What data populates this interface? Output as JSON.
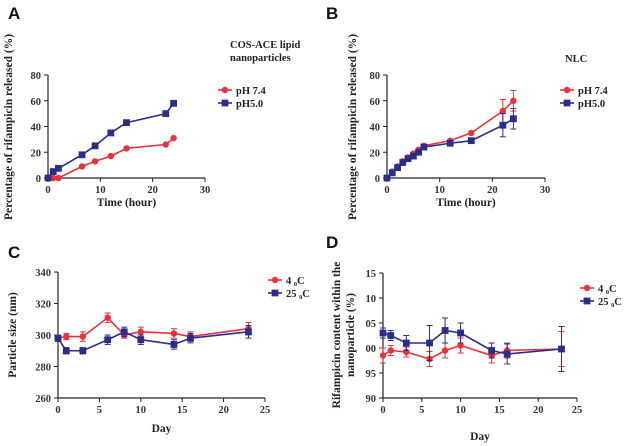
{
  "chart_data": [
    {
      "panel": "A",
      "type": "line",
      "title_lines": [
        "COS-ACE lipid",
        "nanoparticles"
      ],
      "xlabel": "Time (hour)",
      "ylabel": "Percentage of rifampicin released (%)",
      "xlim": [
        0,
        30
      ],
      "ylim": [
        0,
        80
      ],
      "xticks": [
        "0",
        "10",
        "20",
        "30"
      ],
      "yticks": [
        "0",
        "20",
        "40",
        "60",
        "80"
      ],
      "series": [
        {
          "name": "pH 7.4",
          "color": "#e8323c",
          "marker": "circle",
          "x": [
            0,
            1,
            2,
            6.5,
            9,
            12,
            15,
            22.5,
            24
          ],
          "y": [
            0,
            0,
            0,
            9,
            13,
            17,
            23,
            26,
            31
          ]
        },
        {
          "name": "pH5.0",
          "color": "#2b2e86",
          "marker": "square",
          "x": [
            0,
            1,
            2,
            6.5,
            9,
            12,
            15,
            22.5,
            24
          ],
          "y": [
            0,
            5,
            7.5,
            18,
            25,
            35,
            43,
            50,
            58
          ]
        }
      ]
    },
    {
      "panel": "B",
      "type": "line",
      "title_lines": [
        "NLC"
      ],
      "xlabel": "Time (hour)",
      "ylabel": "Percentage of rifampicin released (%)",
      "xlim": [
        0,
        30
      ],
      "ylim": [
        0,
        80
      ],
      "xticks": [
        "0",
        "10",
        "20",
        "30"
      ],
      "yticks": [
        "0",
        "20",
        "40",
        "60",
        "80"
      ],
      "series": [
        {
          "name": "pH 7.4",
          "color": "#e8323c",
          "marker": "circle",
          "x": [
            0,
            1,
            2,
            3,
            4,
            5,
            6,
            7,
            12,
            16,
            22,
            24
          ],
          "y": [
            0,
            5,
            9,
            13,
            16,
            19,
            22,
            25,
            29,
            35,
            52,
            60
          ],
          "err": [
            0,
            0,
            0,
            0,
            0,
            0,
            0,
            0,
            0,
            0,
            9,
            8
          ]
        },
        {
          "name": "pH5.0",
          "color": "#2b2e86",
          "marker": "square",
          "x": [
            0,
            1,
            2,
            3,
            4,
            5,
            6,
            7,
            12,
            16,
            22,
            24
          ],
          "y": [
            0,
            4,
            8,
            12,
            15,
            17,
            20,
            24,
            27,
            29,
            41,
            46
          ],
          "err": [
            0,
            0,
            0,
            0,
            0,
            0,
            0,
            0,
            0,
            0,
            9,
            8
          ]
        }
      ]
    },
    {
      "panel": "C",
      "type": "line",
      "xlabel": "Day",
      "ylabel": "Particle size (nm)",
      "xlim": [
        0,
        25
      ],
      "ylim": [
        260,
        340
      ],
      "xticks": [
        "0",
        "5",
        "10",
        "15",
        "20",
        "25"
      ],
      "yticks": [
        "260",
        "280",
        "300",
        "320",
        "340"
      ],
      "series": [
        {
          "name": "4 ₀C",
          "color": "#e8323c",
          "marker": "circle",
          "x": [
            0,
            1,
            3,
            6,
            8,
            10,
            14,
            16,
            23
          ],
          "y": [
            298,
            299,
            299,
            311,
            300,
            302,
            301,
            299,
            304
          ],
          "err": [
            2,
            2,
            3,
            3,
            2,
            3,
            3,
            3,
            4
          ]
        },
        {
          "name": "25 ₀C",
          "color": "#2b2e86",
          "marker": "square",
          "x": [
            0,
            1,
            3,
            6,
            8,
            10,
            14,
            16,
            23
          ],
          "y": [
            298,
            290,
            290,
            297,
            302,
            297,
            294,
            298,
            302
          ],
          "err": [
            2,
            2,
            2,
            3,
            3,
            3,
            3,
            3,
            4
          ]
        }
      ]
    },
    {
      "panel": "D",
      "type": "line",
      "xlabel": "Day",
      "ylabel_lines": [
        "Rifampicin content within the",
        "nanoparticle (%)"
      ],
      "xlim": [
        0,
        25
      ],
      "ylim": [
        90,
        115
      ],
      "xticks": [
        "0",
        "5",
        "10",
        "15",
        "20",
        "25"
      ],
      "yticks": [
        "90",
        "95",
        "00",
        "05",
        "10",
        "15"
      ],
      "series": [
        {
          "name": "4 ₀C",
          "color": "#e8323c",
          "marker": "circle",
          "x": [
            0,
            1,
            3,
            6,
            8,
            10,
            14,
            16,
            23
          ],
          "y": [
            98.5,
            99.5,
            99.2,
            97.8,
            99.5,
            100.5,
            98.5,
            99.5,
            99.8
          ],
          "err": [
            1.5,
            1,
            1,
            1.5,
            1.5,
            1.5,
            1.5,
            1.5,
            3.5
          ]
        },
        {
          "name": "25 ₀C",
          "color": "#2b2e86",
          "marker": "square",
          "x": [
            0,
            1,
            3,
            6,
            8,
            10,
            14,
            16,
            23
          ],
          "y": [
            103,
            102.5,
            101,
            101,
            103.5,
            103,
            99.5,
            98.8,
            99.8
          ],
          "err": [
            1,
            1,
            1.5,
            3.5,
            2.5,
            2,
            1.5,
            2,
            4.5
          ]
        }
      ]
    }
  ]
}
